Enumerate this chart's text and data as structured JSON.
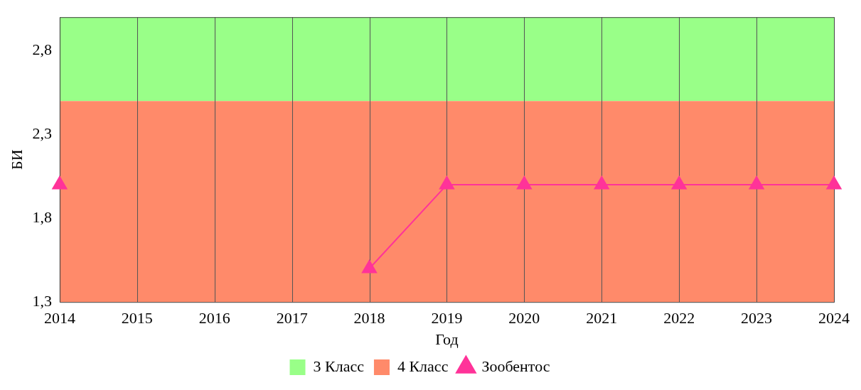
{
  "chart_data": {
    "type": "line",
    "xlabel": "Год",
    "ylabel": "БИ",
    "x": [
      2014,
      2015,
      2016,
      2017,
      2018,
      2019,
      2020,
      2021,
      2022,
      2023,
      2024
    ],
    "series": [
      {
        "name": "Зообентос",
        "color": "#ff3399",
        "values": [
          2.0,
          null,
          null,
          null,
          1.5,
          2.0,
          2.0,
          2.0,
          2.0,
          2.0,
          2.0
        ]
      }
    ],
    "bands": [
      {
        "axis": "y",
        "from": 2.5,
        "to": 3.0,
        "label": "3 Класс",
        "color": "#99ff88"
      },
      {
        "axis": "y",
        "from": 1.3,
        "to": 2.5,
        "label": "4 Класс",
        "color": "#ff8a6a"
      }
    ],
    "xlim": [
      2014,
      2024
    ],
    "xticks": [
      2014,
      2015,
      2016,
      2017,
      2018,
      2019,
      2020,
      2021,
      2022,
      2023,
      2024
    ],
    "ylim": [
      1.3,
      3.0
    ],
    "yticks": [
      {
        "value": 1.3,
        "label": "1,3"
      },
      {
        "value": 1.8,
        "label": "1,8"
      },
      {
        "value": 2.3,
        "label": "2,3"
      },
      {
        "value": 2.8,
        "label": "2,8"
      }
    ],
    "grid": "x",
    "legend": "bottom",
    "marker": "triangle",
    "line_style": "solid"
  }
}
